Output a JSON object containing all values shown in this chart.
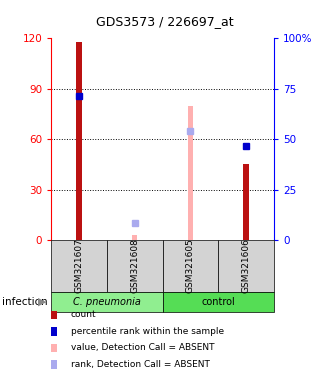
{
  "title": "GDS3573 / 226697_at",
  "samples": [
    "GSM321607",
    "GSM321608",
    "GSM321605",
    "GSM321606"
  ],
  "ylim_left": [
    0,
    120
  ],
  "ylim_right": [
    0,
    100
  ],
  "yticks_left": [
    0,
    30,
    60,
    90,
    120
  ],
  "yticks_right": [
    0,
    25,
    50,
    75,
    100
  ],
  "yticklabels_right": [
    "0",
    "25",
    "50",
    "75",
    "100%"
  ],
  "count_values": [
    118,
    null,
    null,
    45
  ],
  "rank_values": [
    86,
    null,
    null,
    56
  ],
  "absent_value_bars": [
    null,
    3,
    80,
    null
  ],
  "absent_rank_vals": [
    null,
    10,
    65,
    null
  ],
  "color_count": "#bb1111",
  "color_rank": "#0000cc",
  "color_absent_value": "#ffb0b0",
  "color_absent_rank": "#aaaaee",
  "color_group_cpneumo": "#90ee90",
  "color_group_control": "#55dd55",
  "bar_width": 0.12,
  "absent_bar_width": 0.1,
  "legend_items": [
    {
      "label": "count",
      "color": "#bb1111"
    },
    {
      "label": "percentile rank within the sample",
      "color": "#0000cc"
    },
    {
      "label": "value, Detection Call = ABSENT",
      "color": "#ffb0b0"
    },
    {
      "label": "rank, Detection Call = ABSENT",
      "color": "#aaaaee"
    }
  ]
}
